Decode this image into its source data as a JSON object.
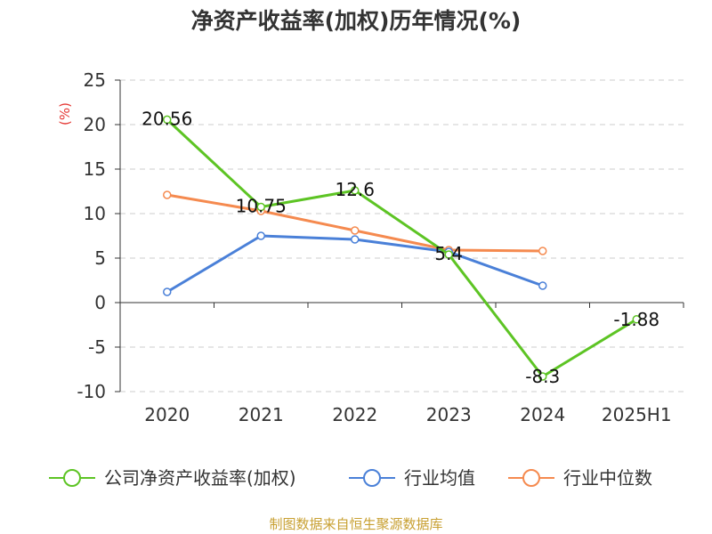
{
  "title": "净资产收益率(加权)历年情况(%)",
  "source": "制图数据来自恒生聚源数据库",
  "chart_data": {
    "type": "line",
    "title": "净资产收益率(加权)历年情况(%)",
    "ylabel": "(%)",
    "xlabel": "",
    "categories": [
      "2020",
      "2021",
      "2022",
      "2023",
      "2024",
      "2025H1"
    ],
    "ylim": [
      -10,
      25
    ],
    "yticks": [
      25,
      20,
      15,
      10,
      5,
      0,
      -5,
      -10
    ],
    "grid": true,
    "legend_position": "bottom",
    "series": [
      {
        "name": "公司净资产收益率(加权)",
        "color": "#5dc424",
        "values": [
          20.56,
          10.75,
          12.6,
          5.4,
          -8.3,
          -1.88
        ],
        "labels": [
          "20.56",
          "10.75",
          "12.6",
          "5.4",
          "-8.3",
          "-1.88"
        ]
      },
      {
        "name": "行业均值",
        "color": "#4a80d8",
        "values": [
          1.2,
          7.5,
          7.1,
          5.7,
          1.9,
          null
        ]
      },
      {
        "name": "行业中位数",
        "color": "#f58a4f",
        "values": [
          12.1,
          10.3,
          8.1,
          5.9,
          5.8,
          null
        ]
      }
    ]
  }
}
